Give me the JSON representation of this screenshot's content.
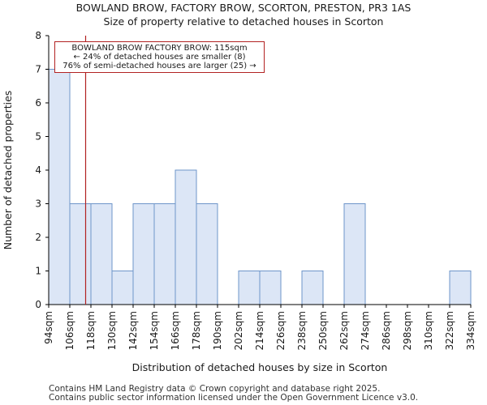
{
  "header": {
    "title_line1": "BOWLAND BROW, FACTORY BROW, SCORTON, PRESTON, PR3 1AS",
    "title_line2": "Size of property relative to detached houses in Scorton"
  },
  "footer": {
    "line1": "Contains HM Land Registry data © Crown copyright and database right 2025.",
    "line2": "Contains public sector information licensed under the Open Government Licence v3.0."
  },
  "chart_data": {
    "type": "bar",
    "title": "Size of property relative to detached houses in Scorton",
    "xlabel": "Distribution of detached houses by size in Scorton",
    "ylabel": "Number of detached properties",
    "ylim": [
      0,
      8
    ],
    "yticks": [
      0,
      1,
      2,
      3,
      4,
      5,
      6,
      7,
      8
    ],
    "bin_edges": [
      94,
      106,
      118,
      130,
      142,
      154,
      166,
      178,
      190,
      202,
      214,
      226,
      238,
      250,
      262,
      274,
      286,
      298,
      310,
      322,
      334
    ],
    "tick_labels": [
      "94sqm",
      "106sqm",
      "118sqm",
      "130sqm",
      "142sqm",
      "154sqm",
      "166sqm",
      "178sqm",
      "190sqm",
      "202sqm",
      "214sqm",
      "226sqm",
      "238sqm",
      "250sqm",
      "262sqm",
      "274sqm",
      "286sqm",
      "298sqm",
      "310sqm",
      "322sqm",
      "334sqm"
    ],
    "values": [
      7,
      3,
      3,
      1,
      3,
      3,
      4,
      3,
      0,
      1,
      1,
      0,
      1,
      0,
      3,
      0,
      0,
      0,
      0,
      1
    ],
    "bar_color": "#dce6f6",
    "bar_edge_color": "#6e95c9",
    "marker": {
      "value": 115,
      "color": "#b22222",
      "line1": "BOWLAND BROW FACTORY BROW: 115sqm",
      "line2": "← 24% of detached houses are smaller (8)",
      "line3": "76% of semi-detached houses are larger (25) →"
    }
  }
}
